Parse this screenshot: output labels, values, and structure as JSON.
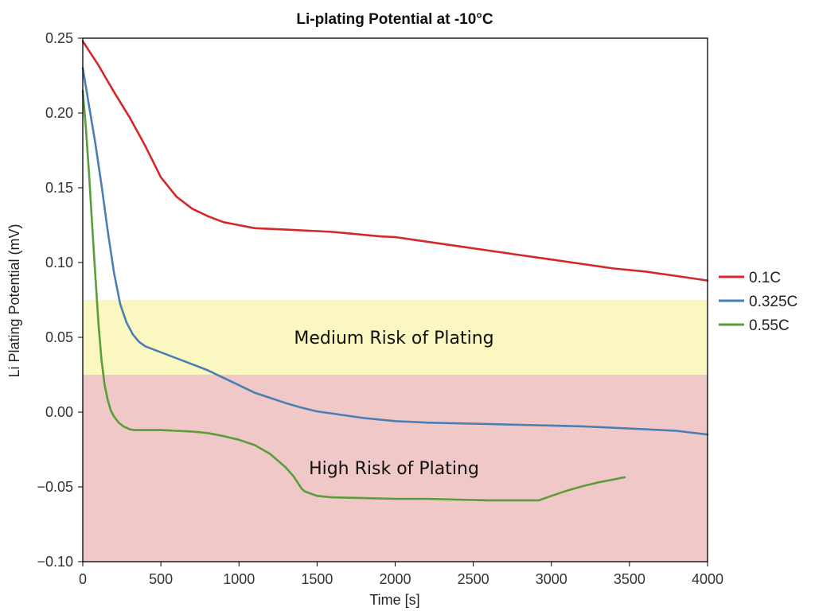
{
  "chart_data": {
    "type": "line",
    "title": "Li-plating Potential at -10°C",
    "xlabel": "Time [s]",
    "ylabel": "Li Plating Potential (mV)",
    "xlim": [
      0,
      4000
    ],
    "ylim": [
      -0.1,
      0.25
    ],
    "xticks": [
      0,
      500,
      1000,
      1500,
      2000,
      2500,
      3000,
      3500,
      4000
    ],
    "xtick_labels": [
      "0",
      "500",
      "1000",
      "1500",
      "2000",
      "2500",
      "3000",
      "3500",
      "4000"
    ],
    "yticks": [
      -0.1,
      -0.05,
      0.0,
      0.05,
      0.1,
      0.15,
      0.2,
      0.25
    ],
    "ytick_labels": [
      "−0.10",
      "−0.05",
      "0.00",
      "0.05",
      "0.10",
      "0.15",
      "0.20",
      "0.25"
    ],
    "grid": false,
    "legend_position": "right",
    "bands": [
      {
        "label": "Medium Risk of Plating",
        "y_from": 0.025,
        "y_to": 0.075,
        "color": "#fbf7c0"
      },
      {
        "label": "High Risk of Plating",
        "y_from": -0.1,
        "y_to": 0.025,
        "color": "#f0c8c8"
      }
    ],
    "series": [
      {
        "name": "0.1C",
        "color": "#d62728",
        "x": [
          0,
          100,
          200,
          300,
          400,
          500,
          600,
          700,
          800,
          900,
          1000,
          1100,
          1200,
          1300,
          1400,
          1500,
          1600,
          1700,
          1800,
          1900,
          2000,
          2200,
          2400,
          2600,
          2800,
          3000,
          3200,
          3400,
          3600,
          3800,
          4000
        ],
        "y": [
          0.248,
          0.232,
          0.214,
          0.197,
          0.178,
          0.157,
          0.144,
          0.136,
          0.131,
          0.127,
          0.125,
          0.123,
          0.1225,
          0.122,
          0.1215,
          0.121,
          0.1205,
          0.1195,
          0.1185,
          0.1175,
          0.117,
          0.114,
          0.111,
          0.108,
          0.105,
          0.102,
          0.099,
          0.096,
          0.094,
          0.091,
          0.088
        ]
      },
      {
        "name": "0.325C",
        "color": "#4a7fb5",
        "x": [
          0,
          40,
          80,
          120,
          160,
          200,
          240,
          280,
          320,
          360,
          400,
          500,
          600,
          700,
          800,
          900,
          1000,
          1100,
          1200,
          1300,
          1400,
          1500,
          1600,
          1800,
          2000,
          2200,
          2400,
          2600,
          2800,
          3000,
          3200,
          3400,
          3600,
          3800,
          4000
        ],
        "y": [
          0.23,
          0.205,
          0.18,
          0.152,
          0.121,
          0.093,
          0.072,
          0.06,
          0.052,
          0.047,
          0.044,
          0.04,
          0.036,
          0.032,
          0.028,
          0.023,
          0.018,
          0.013,
          0.0095,
          0.006,
          0.003,
          0.0005,
          -0.001,
          -0.004,
          -0.006,
          -0.007,
          -0.0075,
          -0.008,
          -0.0085,
          -0.009,
          -0.0095,
          -0.0105,
          -0.0115,
          -0.0125,
          -0.015
        ]
      },
      {
        "name": "0.55C",
        "color": "#5a9e3a",
        "x": [
          0,
          20,
          40,
          60,
          80,
          100,
          120,
          140,
          160,
          180,
          200,
          230,
          260,
          300,
          330,
          400,
          500,
          600,
          700,
          800,
          900,
          1000,
          1100,
          1200,
          1300,
          1350,
          1400,
          1420,
          1500,
          1600,
          1800,
          2000,
          2200,
          2400,
          2600,
          2800,
          2920,
          3000,
          3100,
          3200,
          3300,
          3400,
          3470
        ],
        "y": [
          0.215,
          0.19,
          0.16,
          0.125,
          0.092,
          0.06,
          0.035,
          0.018,
          0.008,
          0.001,
          -0.003,
          -0.007,
          -0.0095,
          -0.0115,
          -0.012,
          -0.012,
          -0.012,
          -0.0125,
          -0.013,
          -0.014,
          -0.016,
          -0.0185,
          -0.022,
          -0.028,
          -0.037,
          -0.043,
          -0.051,
          -0.053,
          -0.056,
          -0.057,
          -0.0575,
          -0.058,
          -0.058,
          -0.0585,
          -0.059,
          -0.059,
          -0.059,
          -0.056,
          -0.0525,
          -0.0495,
          -0.047,
          -0.045,
          -0.0435
        ]
      }
    ]
  }
}
